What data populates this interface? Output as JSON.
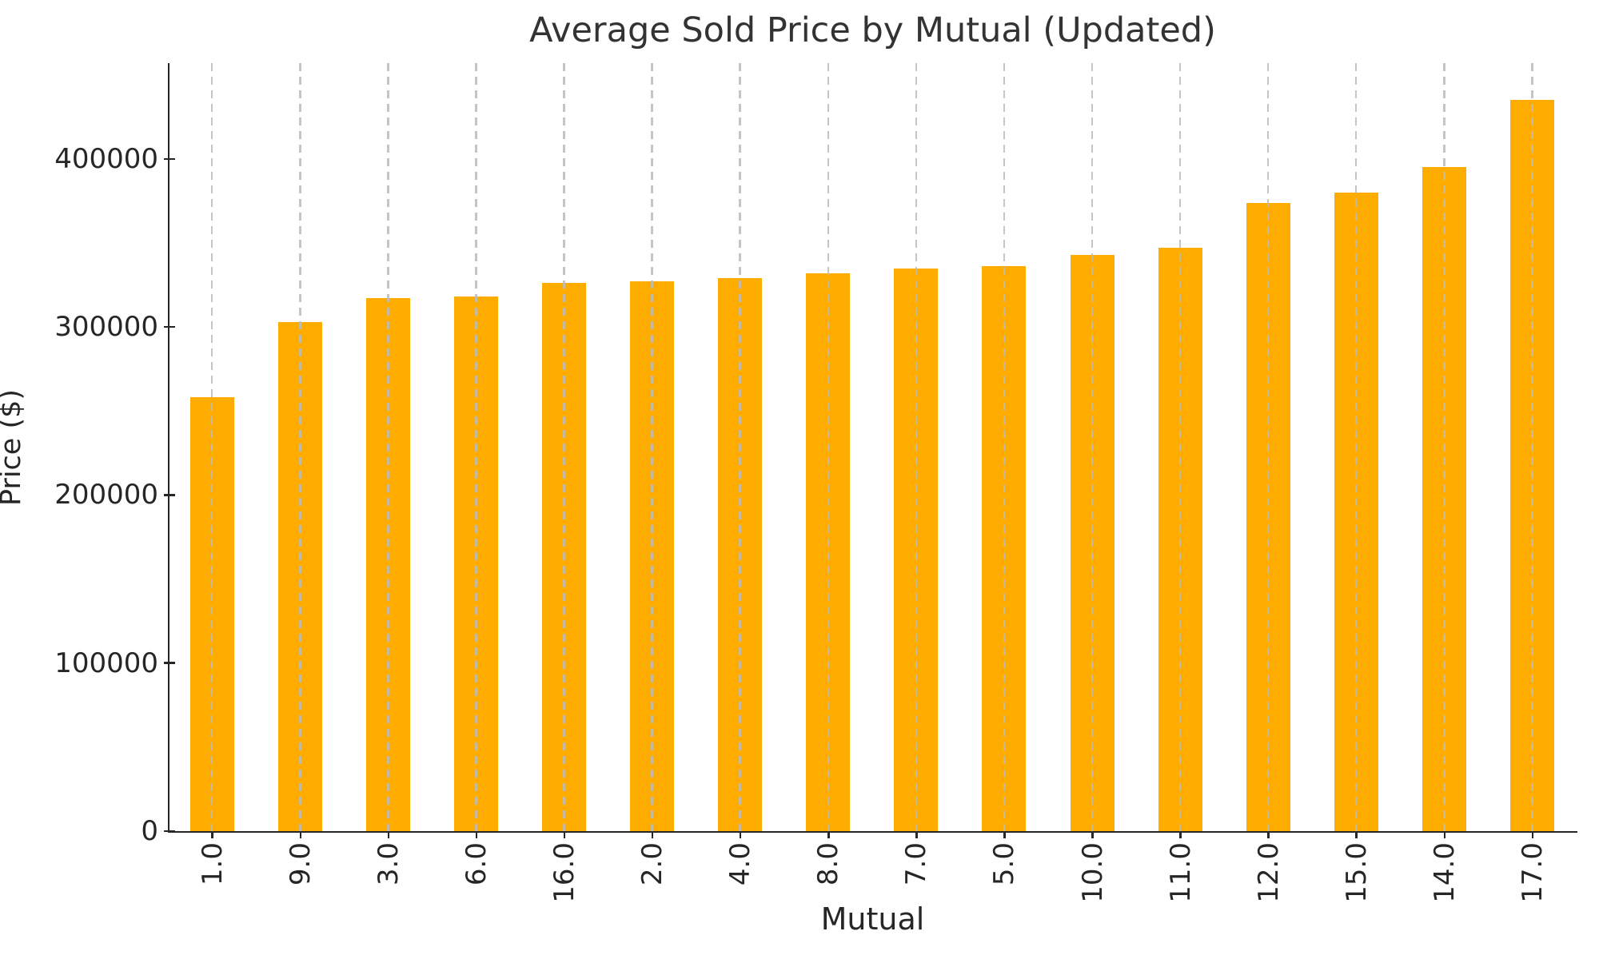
{
  "chart_data": {
    "type": "bar",
    "title": "Average Sold Price by Mutual (Updated)",
    "xlabel": "Mutual",
    "ylabel": "Price ($)",
    "categories": [
      "1.0",
      "9.0",
      "3.0",
      "6.0",
      "16.0",
      "2.0",
      "4.0",
      "8.0",
      "7.0",
      "5.0",
      "10.0",
      "11.0",
      "12.0",
      "15.0",
      "14.0",
      "17.0"
    ],
    "values": [
      258000,
      303000,
      317000,
      318000,
      326000,
      327000,
      329000,
      332000,
      335000,
      336000,
      343000,
      347000,
      374000,
      380000,
      395000,
      435000
    ],
    "yticks": [
      0,
      100000,
      200000,
      300000,
      400000
    ],
    "ytick_labels": [
      "0",
      "100000",
      "200000",
      "300000",
      "400000"
    ],
    "ylim": [
      0,
      457000
    ],
    "xtick_rotation_deg": 90,
    "bar_color": "#FFAC00",
    "grid": "vertical-dashed-per-category",
    "gridline_color": "#bbbbbb",
    "spine_color": "#262626",
    "legend": "none"
  }
}
